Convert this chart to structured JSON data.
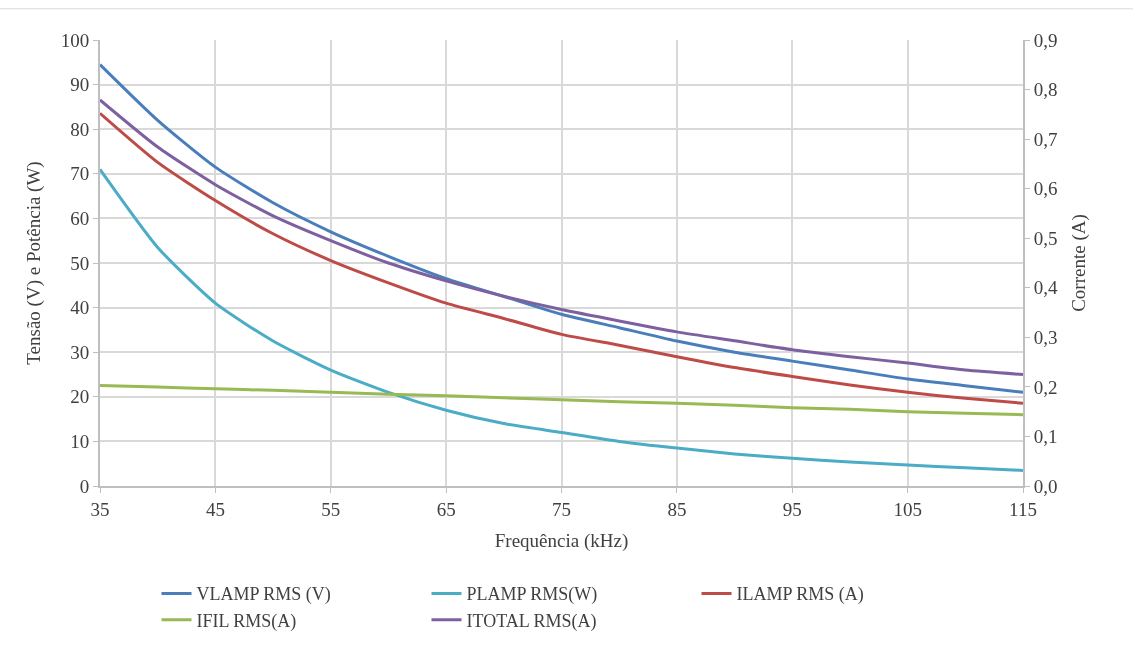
{
  "chart_data": {
    "type": "line",
    "xlabel": "Frequência (kHz)",
    "ylabel": "Tensão (V) e Potência (W)",
    "y2label": "Corrente (A)",
    "x": [
      35,
      40,
      45,
      50,
      55,
      60,
      65,
      70,
      75,
      80,
      85,
      90,
      95,
      100,
      105,
      110,
      115
    ],
    "xlim": [
      35,
      115
    ],
    "xticks": [
      35,
      45,
      55,
      65,
      75,
      85,
      95,
      105,
      115
    ],
    "ylim": [
      0,
      100
    ],
    "yticks": [
      0,
      10,
      20,
      30,
      40,
      50,
      60,
      70,
      80,
      90,
      100
    ],
    "y2lim": [
      0,
      0.9
    ],
    "y2ticks": [
      {
        "value": 0,
        "label": "0,0"
      },
      {
        "value": 0.1,
        "label": "0,1"
      },
      {
        "value": 0.2,
        "label": "0,2"
      },
      {
        "value": 0.3,
        "label": "0,3"
      },
      {
        "value": 0.4,
        "label": "0,4"
      },
      {
        "value": 0.5,
        "label": "0,5"
      },
      {
        "value": 0.6,
        "label": "0,6"
      },
      {
        "value": 0.7,
        "label": "0,7"
      },
      {
        "value": 0.8,
        "label": "0,8"
      },
      {
        "value": 0.9,
        "label": "0,9"
      }
    ],
    "grid": true,
    "legend": "bottom",
    "marker": "none",
    "line_style": "solid",
    "series": [
      {
        "name": "VLAMP RMS (V)",
        "color": "#4a7ebb",
        "values": [
          94.5,
          82,
          71.5,
          63.5,
          57,
          51.5,
          46.5,
          42.5,
          38.5,
          35.5,
          32.5,
          30,
          28,
          26,
          24,
          22.5,
          21
        ]
      },
      {
        "name": "PLAMP RMS(W)",
        "color": "#4bacc6",
        "values": [
          71,
          53.5,
          41,
          32.5,
          26,
          21,
          17,
          14,
          12,
          10,
          8.5,
          7.2,
          6.2,
          5.4,
          4.7,
          4.1,
          3.5
        ]
      },
      {
        "name": "ILAMP RMS (A)",
        "color": "#be4b48",
        "axis": "y2",
        "values": [
          0.752,
          0.653,
          0.576,
          0.509,
          0.455,
          0.41,
          0.369,
          0.338,
          0.306,
          0.284,
          0.261,
          0.239,
          0.221,
          0.204,
          0.189,
          0.177,
          0.167
        ]
      },
      {
        "name": "IFIL RMS(A)",
        "color": "#98b954",
        "axis": "y2",
        "values": [
          0.203,
          0.2,
          0.196,
          0.193,
          0.189,
          0.185,
          0.182,
          0.178,
          0.174,
          0.17,
          0.167,
          0.163,
          0.158,
          0.155,
          0.15,
          0.147,
          0.144
        ]
      },
      {
        "name": "ITOTAL RMS(A)",
        "color": "#7d60a0",
        "axis": "y2",
        "values": [
          0.779,
          0.684,
          0.608,
          0.545,
          0.495,
          0.45,
          0.414,
          0.383,
          0.356,
          0.333,
          0.311,
          0.293,
          0.275,
          0.261,
          0.248,
          0.234,
          0.225
        ]
      }
    ]
  }
}
